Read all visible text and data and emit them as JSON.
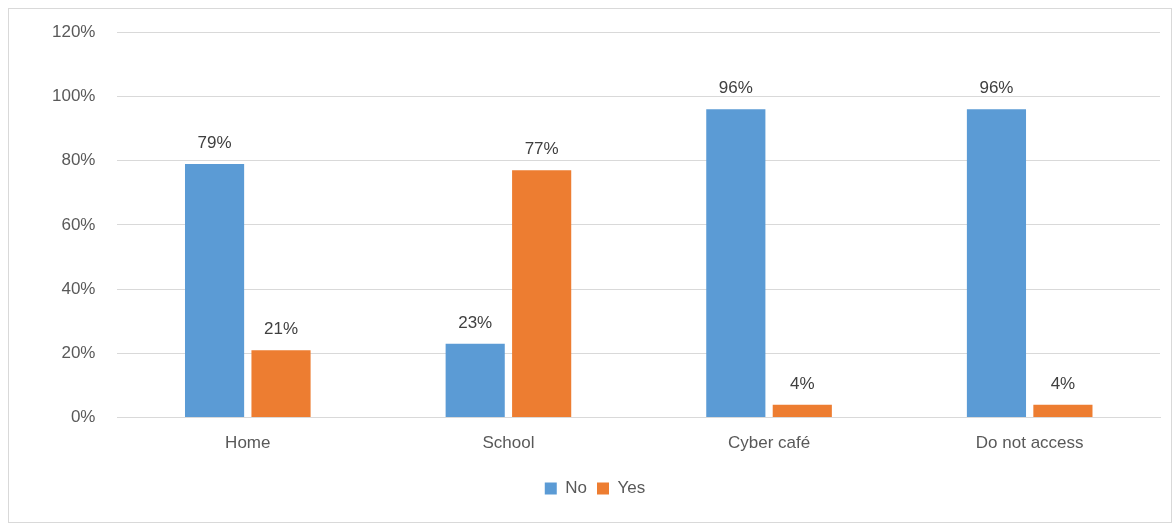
{
  "chart_data": {
    "type": "bar",
    "categories": [
      "Home",
      "School",
      "Cyber café",
      "Do not access"
    ],
    "series": [
      {
        "name": "No",
        "color": "#5b9bd5",
        "values": [
          79,
          23,
          96,
          96
        ],
        "value_labels": [
          "79%",
          "23%",
          "96%",
          "96%"
        ]
      },
      {
        "name": "Yes",
        "color": "#ed7d31",
        "values": [
          21,
          77,
          4,
          4
        ],
        "value_labels": [
          "21%",
          "77%",
          "4%",
          "4%"
        ]
      }
    ],
    "ylim": [
      0,
      120
    ],
    "yticks": [
      {
        "value": 0,
        "label": "0%"
      },
      {
        "value": 20,
        "label": "20%"
      },
      {
        "value": 40,
        "label": "40%"
      },
      {
        "value": 60,
        "label": "60%"
      },
      {
        "value": 80,
        "label": "80%"
      },
      {
        "value": 100,
        "label": "100%"
      },
      {
        "value": 120,
        "label": "120%"
      }
    ],
    "grid": "y",
    "legend": "bottom"
  }
}
